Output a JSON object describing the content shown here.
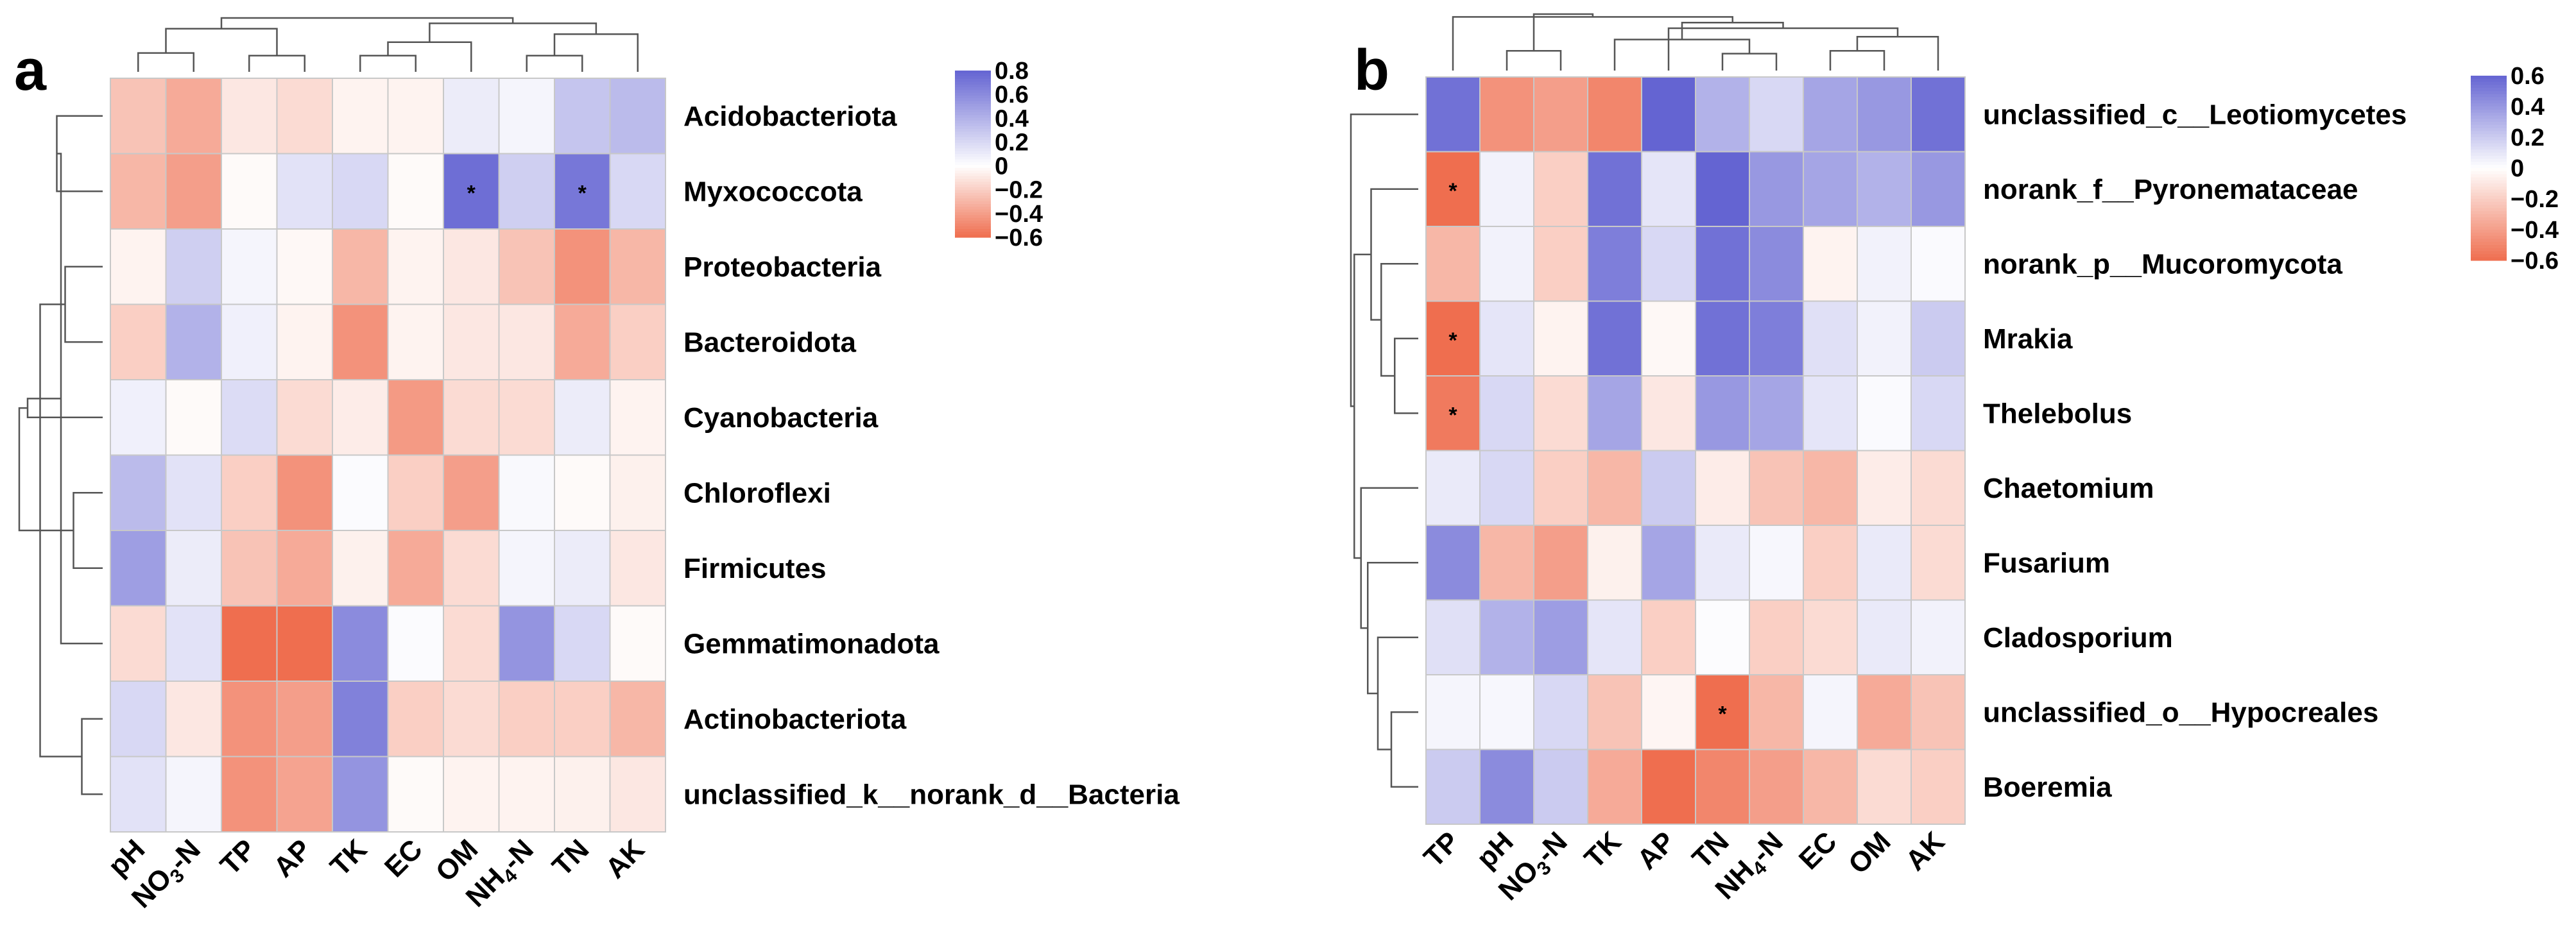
{
  "chart_data": [
    {
      "type": "heatmap",
      "panel": "a",
      "rows": [
        "Acidobacteriota",
        "Myxococcota",
        "Proteobacteria",
        "Bacteroidota",
        "Cyanobacteria",
        "Chloroflexi",
        "Firmicutes",
        "Gemmatimonadota",
        "Actinobacteriota",
        "unclassified_k__norank_d__Bacteria"
      ],
      "columns": [
        {
          "main": "pH"
        },
        {
          "main": "NO",
          "sub": "3",
          "suffix": "-N"
        },
        {
          "main": "TP"
        },
        {
          "main": "AP"
        },
        {
          "main": "TK"
        },
        {
          "main": "EC"
        },
        {
          "main": "OM"
        },
        {
          "main": "NH",
          "sub": "4",
          "suffix": "-N"
        },
        {
          "main": "TN"
        },
        {
          "main": "AK"
        }
      ],
      "values": [
        [
          -0.25,
          -0.35,
          -0.1,
          -0.15,
          -0.05,
          -0.05,
          0.1,
          0.05,
          0.3,
          0.35
        ],
        [
          -0.3,
          -0.4,
          -0.02,
          0.15,
          0.2,
          -0.02,
          0.75,
          0.25,
          0.7,
          0.2
        ],
        [
          -0.05,
          0.25,
          0.05,
          -0.03,
          -0.3,
          -0.05,
          -0.1,
          -0.25,
          -0.45,
          -0.3
        ],
        [
          -0.2,
          0.4,
          0.08,
          -0.05,
          -0.45,
          -0.05,
          -0.1,
          -0.1,
          -0.35,
          -0.2
        ],
        [
          0.08,
          -0.02,
          0.18,
          -0.15,
          -0.08,
          -0.42,
          -0.15,
          -0.15,
          0.1,
          -0.05
        ],
        [
          0.35,
          0.15,
          -0.2,
          -0.45,
          0.02,
          -0.2,
          -0.4,
          0.03,
          -0.02,
          -0.06
        ],
        [
          0.5,
          0.1,
          -0.25,
          -0.35,
          -0.06,
          -0.35,
          -0.15,
          0.05,
          0.1,
          -0.1
        ],
        [
          -0.15,
          0.15,
          -0.6,
          -0.6,
          0.6,
          0.02,
          -0.15,
          0.55,
          0.2,
          -0.02
        ],
        [
          0.2,
          -0.1,
          -0.45,
          -0.4,
          0.65,
          -0.2,
          -0.15,
          -0.2,
          -0.2,
          -0.3
        ],
        [
          0.15,
          0.05,
          -0.45,
          -0.38,
          0.55,
          -0.02,
          -0.05,
          -0.05,
          -0.06,
          -0.1
        ]
      ],
      "significant": [
        [
          1,
          6
        ],
        [
          1,
          8
        ]
      ],
      "significance_symbol": "*",
      "color_scale": {
        "min": -0.6,
        "max": 0.8,
        "low_color": "#ef6e4f",
        "mid_color": "#ffffff",
        "high_color": "#6464d2"
      },
      "legend_ticks": [
        "0.8",
        "0.6",
        "0.4",
        "0.2",
        "0",
        "−0.2",
        "−0.4",
        "−0.6"
      ],
      "legend_tick_values": [
        0.8,
        0.6,
        0.4,
        0.2,
        0,
        -0.2,
        -0.4,
        -0.6
      ],
      "row_dendrogram": "left",
      "column_dendrogram": "top"
    },
    {
      "type": "heatmap",
      "panel": "b",
      "rows": [
        "unclassified_c__Leotiomycetes",
        "norank_f__Pyronemataceae",
        "norank_p__Mucoromycota",
        "Mrakia",
        "Thelebolus",
        "Chaetomium",
        "Fusarium",
        "Cladosporium",
        "unclassified_o__Hypocreales",
        "Boeremia"
      ],
      "columns": [
        {
          "main": "TP"
        },
        {
          "main": "pH"
        },
        {
          "main": "NO",
          "sub": "3",
          "suffix": "-N"
        },
        {
          "main": "TK"
        },
        {
          "main": "AP"
        },
        {
          "main": "TN"
        },
        {
          "main": "NH",
          "sub": "4",
          "suffix": "-N"
        },
        {
          "main": "EC"
        },
        {
          "main": "OM"
        },
        {
          "main": "AK"
        }
      ],
      "values": [
        [
          0.55,
          -0.45,
          -0.4,
          -0.5,
          0.6,
          0.3,
          0.15,
          0.35,
          0.4,
          0.55
        ],
        [
          -0.6,
          0.05,
          -0.2,
          0.55,
          0.1,
          0.6,
          0.4,
          0.35,
          0.3,
          0.4
        ],
        [
          -0.3,
          0.05,
          -0.2,
          0.5,
          0.15,
          0.55,
          0.45,
          -0.05,
          0.05,
          0.02
        ],
        [
          -0.6,
          0.1,
          -0.05,
          0.55,
          -0.03,
          0.55,
          0.5,
          0.12,
          0.05,
          0.2
        ],
        [
          -0.55,
          0.15,
          -0.15,
          0.35,
          -0.1,
          0.4,
          0.35,
          0.1,
          0.02,
          0.15
        ],
        [
          0.08,
          0.15,
          -0.2,
          -0.3,
          0.2,
          -0.08,
          -0.25,
          -0.3,
          -0.08,
          -0.15
        ],
        [
          0.45,
          -0.3,
          -0.4,
          -0.06,
          0.35,
          0.08,
          0.03,
          -0.2,
          0.08,
          -0.15
        ],
        [
          0.12,
          0.3,
          0.38,
          0.1,
          -0.2,
          0.01,
          -0.2,
          -0.15,
          0.08,
          0.05
        ],
        [
          0.04,
          0.03,
          0.15,
          -0.25,
          -0.04,
          -0.6,
          -0.3,
          0.04,
          -0.35,
          -0.25
        ],
        [
          0.2,
          0.45,
          0.2,
          -0.35,
          -0.6,
          -0.5,
          -0.4,
          -0.3,
          -0.15,
          -0.2
        ]
      ],
      "significant": [
        [
          1,
          0
        ],
        [
          3,
          0
        ],
        [
          4,
          0
        ],
        [
          8,
          5
        ]
      ],
      "significance_symbol": "*",
      "color_scale": {
        "min": -0.6,
        "max": 0.6,
        "low_color": "#ef6e4f",
        "mid_color": "#ffffff",
        "high_color": "#6464d2"
      },
      "legend_ticks": [
        "0.6",
        "0.4",
        "0.2",
        "0",
        "−0.2",
        "−0.4",
        "−0.6"
      ],
      "legend_tick_values": [
        0.6,
        0.4,
        0.2,
        0,
        -0.2,
        -0.4,
        -0.6
      ],
      "row_dendrogram": "left",
      "column_dendrogram": "top"
    }
  ]
}
